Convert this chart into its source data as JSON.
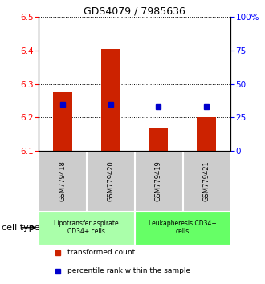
{
  "title": "GDS4079 / 7985636",
  "samples": [
    "GSM779418",
    "GSM779420",
    "GSM779419",
    "GSM779421"
  ],
  "bar_values": [
    6.275,
    6.405,
    6.17,
    6.2
  ],
  "bar_bottom": 6.1,
  "percentile_values": [
    6.238,
    6.238,
    6.232,
    6.232
  ],
  "ylim_left": [
    6.1,
    6.5
  ],
  "ylim_right": [
    0,
    100
  ],
  "yticks_left": [
    6.1,
    6.2,
    6.3,
    6.4,
    6.5
  ],
  "yticks_right": [
    0,
    25,
    50,
    75,
    100
  ],
  "ytick_labels_right": [
    "0",
    "25",
    "50",
    "75",
    "100%"
  ],
  "bar_color": "#cc2200",
  "dot_color": "#0000cc",
  "cell_type_groups": [
    {
      "label": "Lipotransfer aspirate\nCD34+ cells",
      "samples": [
        0,
        1
      ],
      "color": "#aaffaa"
    },
    {
      "label": "Leukapheresis CD34+\ncells",
      "samples": [
        2,
        3
      ],
      "color": "#66ff66"
    }
  ],
  "legend_bar_label": "transformed count",
  "legend_dot_label": "percentile rank within the sample",
  "cell_type_label": "cell type",
  "background_color": "#ffffff",
  "sample_box_color": "#cccccc",
  "title_fontsize": 9,
  "tick_fontsize": 7.5,
  "sample_fontsize": 6,
  "group_fontsize": 5.5,
  "legend_fontsize": 6.5,
  "cell_type_fontsize": 8
}
